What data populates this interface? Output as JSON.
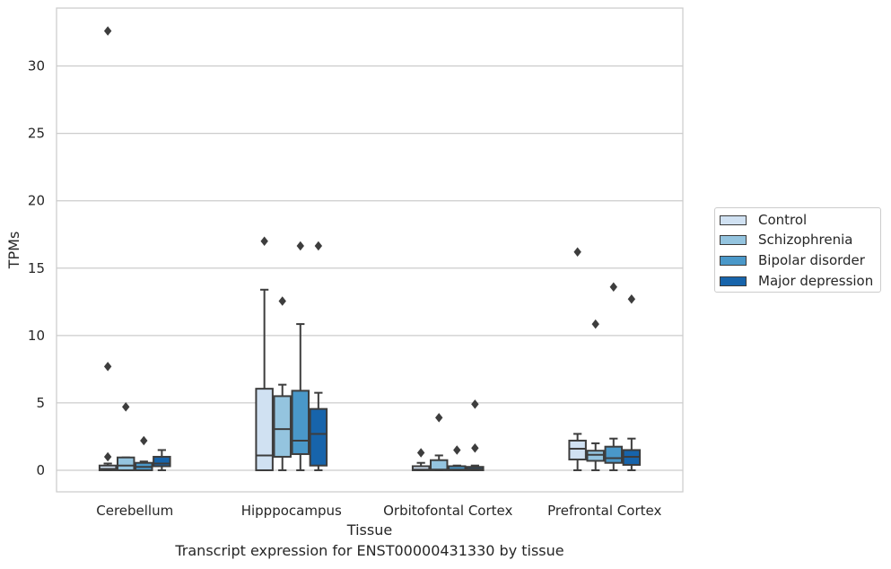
{
  "chart_data": {
    "type": "boxplot",
    "xlabel": "Tissue",
    "ylabel": "TPMs",
    "ylim": [
      -1.6,
      34.3
    ],
    "yticks": [
      0,
      5,
      10,
      15,
      20,
      25,
      30
    ],
    "grid": true,
    "legend_position": "right",
    "categories": [
      "Cerebellum",
      "Hipppocampus",
      "Orbitofontal Cortex",
      "Prefrontal Cortex"
    ],
    "series": [
      {
        "name": "Control",
        "color": "#d0e1f2",
        "boxes": [
          {
            "whislo": 0,
            "q1": 0,
            "med": 0.1,
            "q3": 0.35,
            "whishi": 0.5,
            "fliers": [
              1.0,
              7.7,
              32.6
            ]
          },
          {
            "whislo": 0,
            "q1": 0,
            "med": 1.1,
            "q3": 6.05,
            "whishi": 13.4,
            "fliers": [
              17.0
            ]
          },
          {
            "whislo": 0,
            "q1": 0,
            "med": 0.05,
            "q3": 0.3,
            "whishi": 0.55,
            "fliers": [
              1.3
            ]
          },
          {
            "whislo": 0,
            "q1": 0.8,
            "med": 1.6,
            "q3": 2.2,
            "whishi": 2.7,
            "fliers": [
              16.2
            ]
          }
        ]
      },
      {
        "name": "Schizophrenia",
        "color": "#94c4df",
        "boxes": [
          {
            "whislo": 0,
            "q1": 0,
            "med": 0.35,
            "q3": 0.95,
            "whishi": 0.95,
            "fliers": [
              4.7
            ]
          },
          {
            "whislo": 0,
            "q1": 1.0,
            "med": 3.05,
            "q3": 5.5,
            "whishi": 6.35,
            "fliers": [
              12.55
            ]
          },
          {
            "whislo": 0,
            "q1": 0,
            "med": 0.05,
            "q3": 0.75,
            "whishi": 1.1,
            "fliers": [
              3.9
            ]
          },
          {
            "whislo": 0,
            "q1": 0.7,
            "med": 1.15,
            "q3": 1.45,
            "whishi": 2.0,
            "fliers": [
              10.85
            ]
          }
        ]
      },
      {
        "name": "Bipolar disorder",
        "color": "#4a98c9",
        "boxes": [
          {
            "whislo": 0,
            "q1": 0,
            "med": 0.25,
            "q3": 0.55,
            "whishi": 0.65,
            "fliers": [
              2.2
            ]
          },
          {
            "whislo": 0,
            "q1": 1.2,
            "med": 2.2,
            "q3": 5.9,
            "whishi": 10.85,
            "fliers": [
              16.65
            ]
          },
          {
            "whislo": 0,
            "q1": 0,
            "med": 0.05,
            "q3": 0.3,
            "whishi": 0.35,
            "fliers": [
              1.5
            ]
          },
          {
            "whislo": 0,
            "q1": 0.55,
            "med": 0.9,
            "q3": 1.75,
            "whishi": 2.35,
            "fliers": [
              13.6
            ]
          }
        ]
      },
      {
        "name": "Major depression",
        "color": "#1764ab",
        "boxes": [
          {
            "whislo": 0,
            "q1": 0.3,
            "med": 0.5,
            "q3": 1.0,
            "whishi": 1.5,
            "fliers": []
          },
          {
            "whislo": 0,
            "q1": 0.35,
            "med": 2.7,
            "q3": 4.55,
            "whishi": 5.75,
            "fliers": [
              16.65
            ]
          },
          {
            "whislo": 0,
            "q1": 0,
            "med": 0.1,
            "q3": 0.25,
            "whishi": 0.35,
            "fliers": [
              1.65,
              4.9
            ]
          },
          {
            "whislo": 0,
            "q1": 0.4,
            "med": 1.0,
            "q3": 1.5,
            "whishi": 2.35,
            "fliers": [
              12.7
            ]
          }
        ]
      }
    ]
  },
  "caption": "Transcript expression for ENST00000431330 by tissue"
}
